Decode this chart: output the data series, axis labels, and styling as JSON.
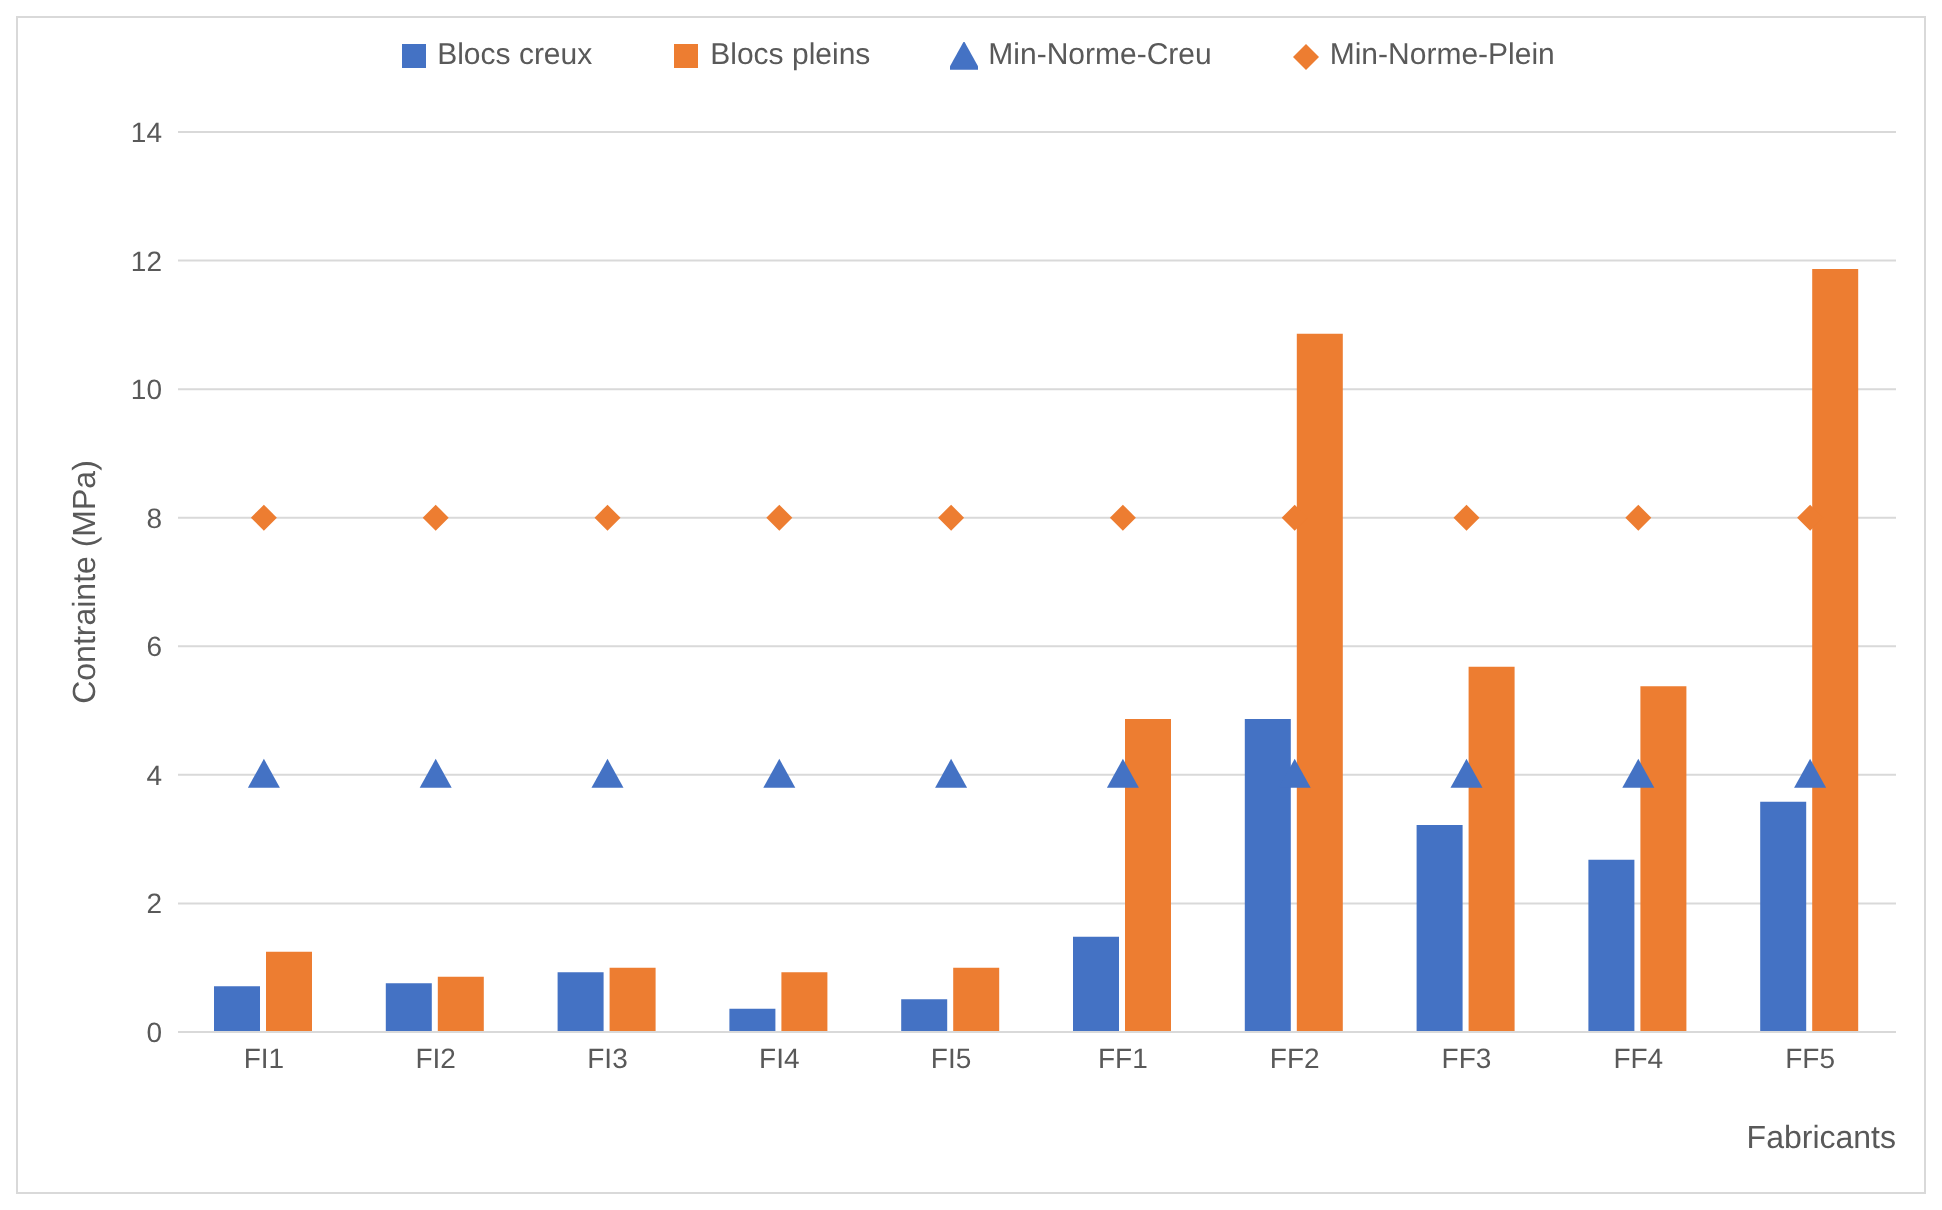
{
  "chart_data": {
    "type": "bar",
    "xlabel": "Fabricants",
    "ylabel": "Contrainte (MPa)",
    "categories": [
      "FI1",
      "FI2",
      "FI3",
      "FI4",
      "FI5",
      "FF1",
      "FF2",
      "FF3",
      "FF4",
      "FF5"
    ],
    "series": [
      {
        "name": "Blocs creux",
        "color": "#4472c4",
        "values": [
          0.71,
          0.76,
          0.93,
          0.36,
          0.51,
          1.48,
          4.87,
          3.22,
          2.68,
          3.58
        ]
      },
      {
        "name": "Blocs pleins",
        "color": "#ed7d31",
        "values": [
          1.25,
          0.86,
          1.0,
          0.93,
          1.0,
          4.87,
          10.86,
          5.68,
          5.38,
          11.87
        ]
      },
      {
        "name": "Min-Norme-Creu",
        "type": "scatter",
        "marker": "triangle",
        "color": "#4472c4",
        "values": [
          4,
          4,
          4,
          4,
          4,
          4,
          4,
          4,
          4,
          4
        ]
      },
      {
        "name": "Min-Norme-Plein",
        "type": "scatter",
        "marker": "diamond",
        "color": "#ed7d31",
        "values": [
          8,
          8,
          8,
          8,
          8,
          8,
          8,
          8,
          8,
          8
        ]
      }
    ],
    "ylim": [
      0,
      14
    ],
    "yticks": [
      0,
      2,
      4,
      6,
      8,
      10,
      12,
      14
    ],
    "grid": "y",
    "legend": "top"
  }
}
